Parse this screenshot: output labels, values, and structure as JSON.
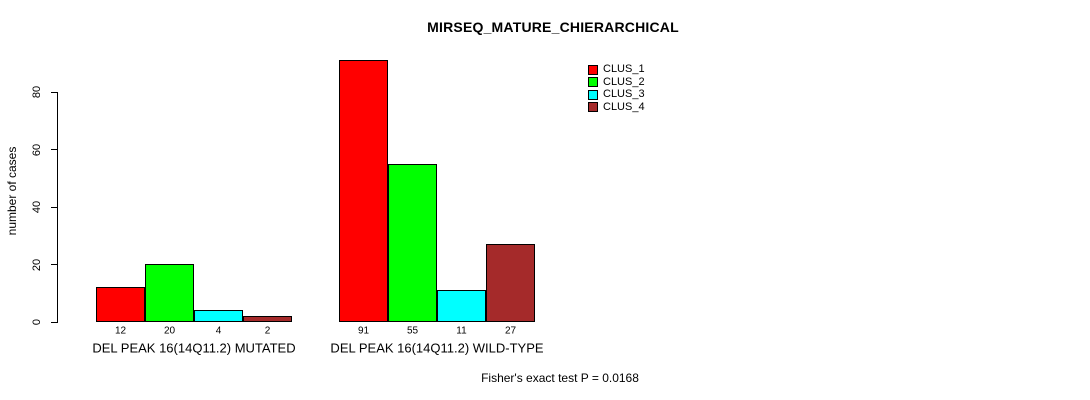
{
  "title": "MIRSEQ_MATURE_CHIERARCHICAL",
  "footer": "Fisher's exact test P = 0.0168",
  "chart_data": {
    "type": "bar",
    "title": "MIRSEQ_MATURE_CHIERARCHICAL",
    "xlabel": "",
    "ylabel": "number of cases",
    "ylim": [
      0,
      91
    ],
    "yticks": [
      0,
      20,
      40,
      60,
      80
    ],
    "grid": false,
    "legend_position": "top-right",
    "bar_outline_color": "#000000",
    "categories": [
      "DEL PEAK 16(14Q11.2) MUTATED",
      "DEL PEAK 16(14Q11.2) WILD-TYPE"
    ],
    "series": [
      {
        "name": "CLUS_1",
        "color": "#ff0000",
        "values": [
          12,
          91
        ]
      },
      {
        "name": "CLUS_2",
        "color": "#00ff00",
        "values": [
          20,
          55
        ]
      },
      {
        "name": "CLUS_3",
        "color": "#00ffff",
        "values": [
          4,
          11
        ]
      },
      {
        "name": "CLUS_4",
        "color": "#a52a2a",
        "values": [
          2,
          27
        ]
      }
    ],
    "bar_value_labels": [
      [
        12,
        20,
        4,
        2
      ],
      [
        91,
        55,
        11,
        27
      ]
    ],
    "annotation": "Fisher's exact test P = 0.0168"
  }
}
